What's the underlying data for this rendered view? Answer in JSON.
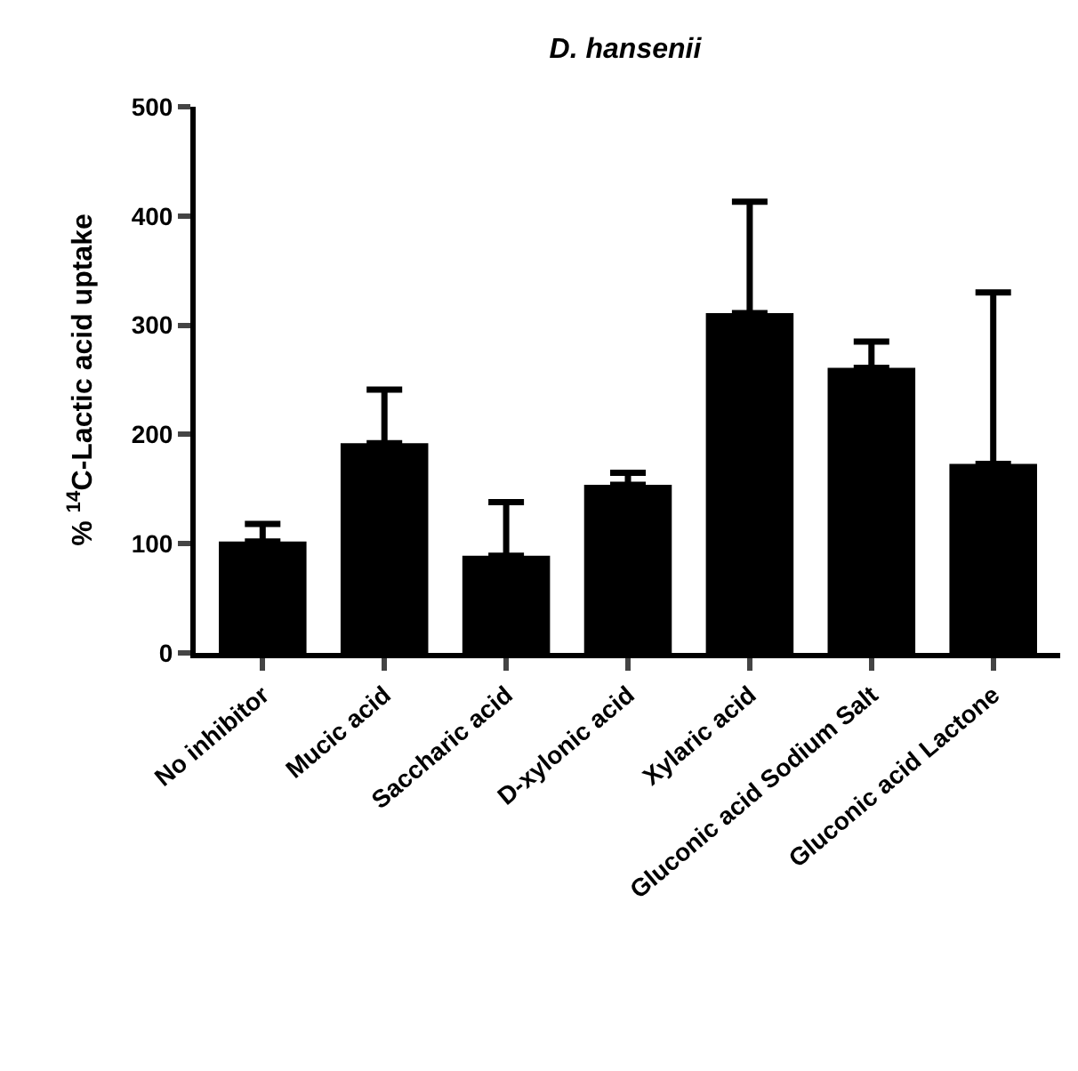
{
  "chart_data": {
    "type": "bar",
    "title": "D. hansenii",
    "ylabel": "% $^{14}$C-Lactic acid uptake",
    "categories": [
      "No inhibitor",
      "Mucic acid",
      "Saccharic acid",
      "D-xylonic acid",
      "Xylaric acid",
      "Gluconic acid Sodium Salt",
      "Gluconic acid Lactone"
    ],
    "values": [
      102,
      192,
      89,
      154,
      311,
      261,
      173
    ],
    "errors": [
      [
        102,
        118
      ],
      [
        192,
        241
      ],
      [
        89,
        138
      ],
      [
        154,
        165
      ],
      [
        311,
        413
      ],
      [
        261,
        285
      ],
      [
        173,
        330
      ]
    ],
    "color": "#000000",
    "ylim": [
      0,
      500
    ],
    "yticks": [
      0,
      100,
      200,
      300,
      400,
      500
    ],
    "grid": false,
    "legend": false
  }
}
